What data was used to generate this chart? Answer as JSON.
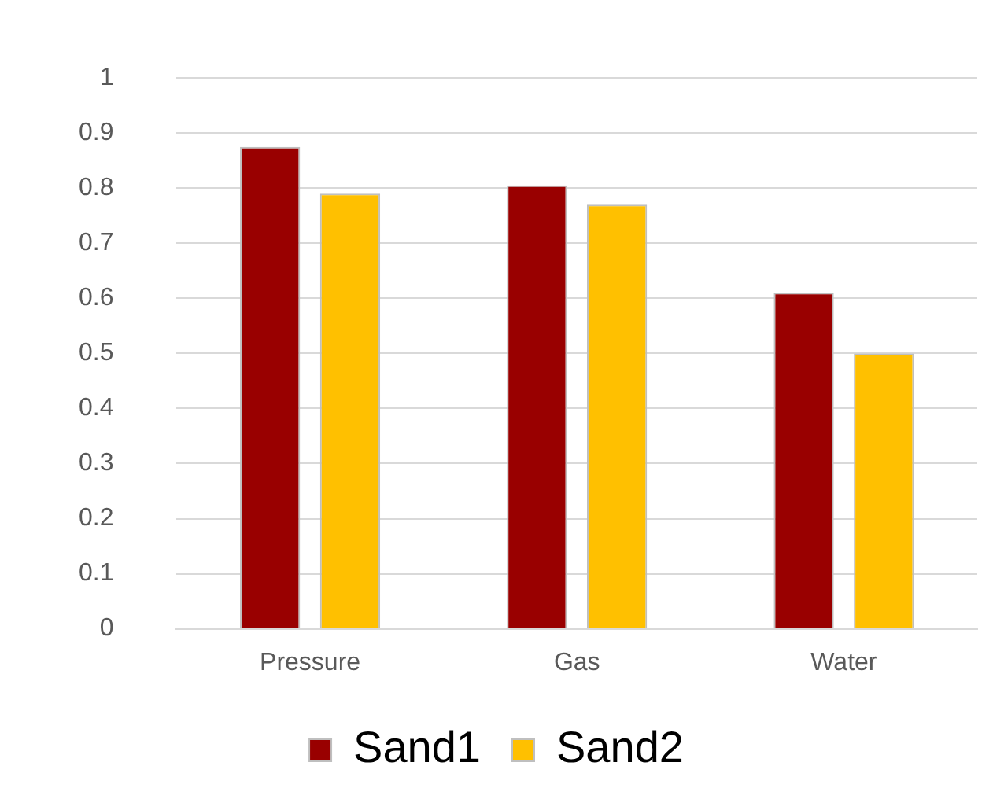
{
  "chart_data": {
    "type": "bar",
    "categories": [
      "Pressure",
      "Gas",
      "Water"
    ],
    "series": [
      {
        "name": "Sand1",
        "color": "#990000",
        "values": [
          0.875,
          0.805,
          0.61
        ]
      },
      {
        "name": "Sand2",
        "color": "#ffc000",
        "values": [
          0.79,
          0.77,
          0.5
        ]
      }
    ],
    "ylim": [
      0,
      1
    ],
    "yticks": [
      0,
      0.1,
      0.2,
      0.3,
      0.4,
      0.5,
      0.6,
      0.7,
      0.8,
      0.9,
      1
    ],
    "grid": "y",
    "legend": "bottom"
  }
}
